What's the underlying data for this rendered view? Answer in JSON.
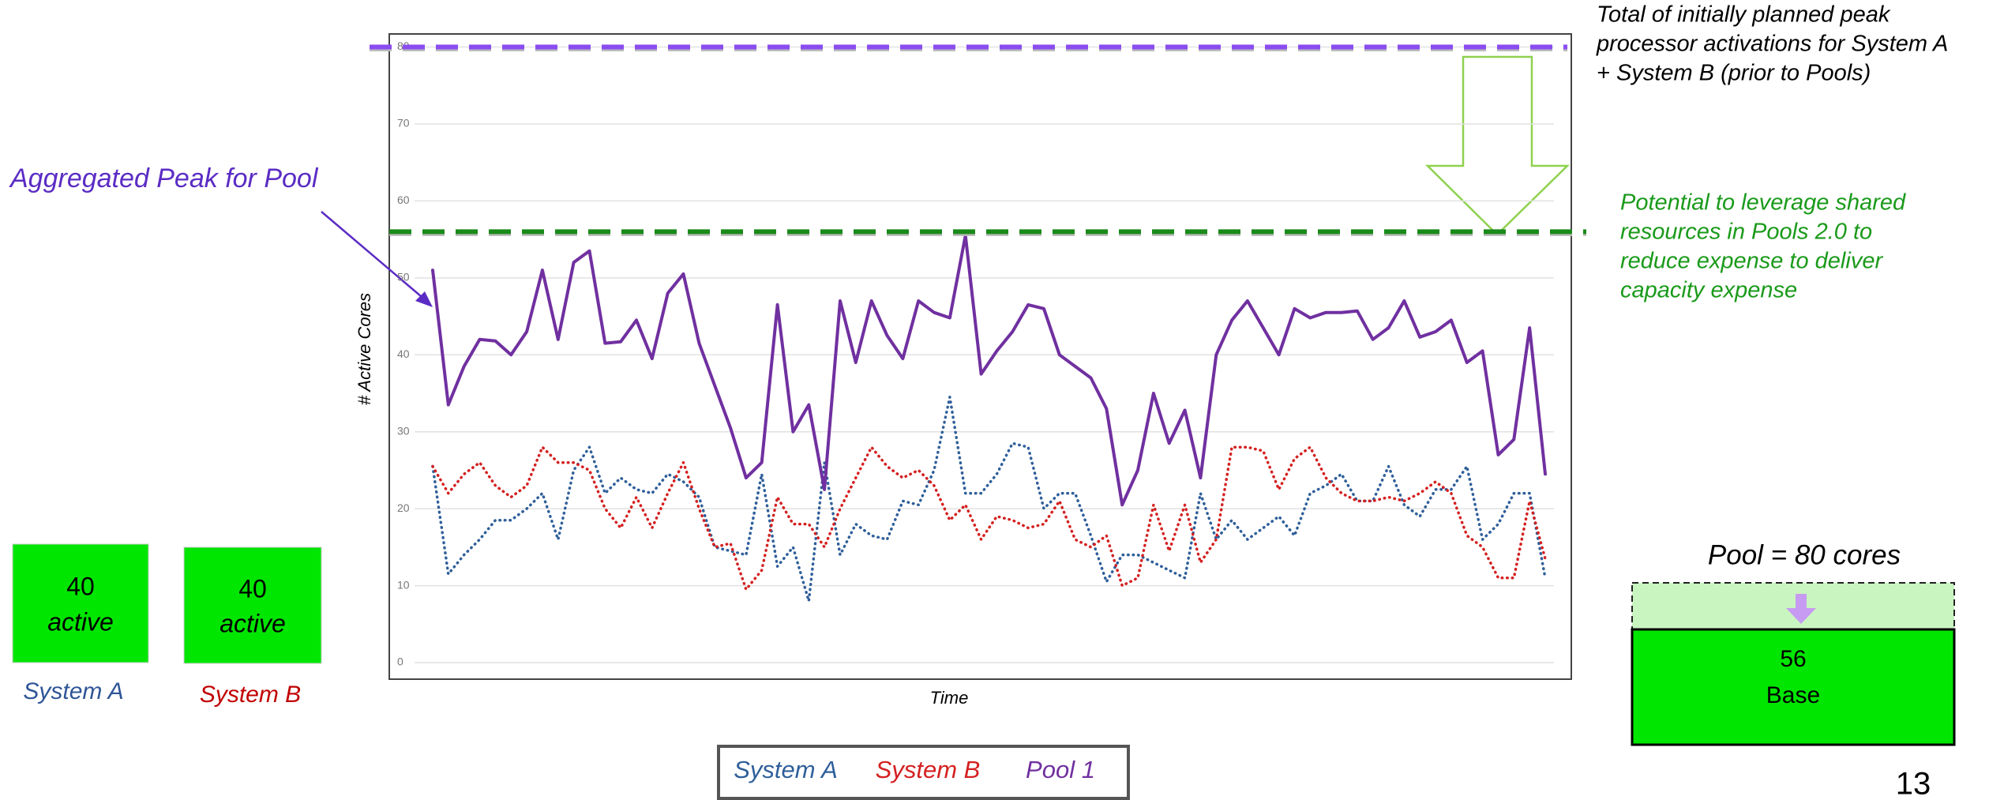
{
  "chart_data": {
    "type": "line",
    "y_label": "# Active Cores",
    "x_label": "Time",
    "ylim": [
      0,
      80
    ],
    "yticks": [
      0,
      10,
      20,
      30,
      40,
      50,
      60,
      70,
      80
    ],
    "grid": true,
    "series": [
      {
        "name": "System A",
        "color": "#2f5f9a",
        "style": "dotted",
        "values": [
          25.5,
          11.5,
          14,
          16,
          18.5,
          18.5,
          20,
          22,
          16,
          25,
          28,
          22,
          24,
          22.5,
          22,
          24.5,
          23.5,
          21.5,
          15,
          14.5,
          14,
          24.5,
          12.5,
          15,
          8,
          26,
          14,
          18,
          16.5,
          16,
          21,
          20.5,
          25,
          34.5,
          22,
          22,
          24.5,
          28.5,
          28,
          20,
          22,
          22,
          16.5,
          10.5,
          14,
          14,
          13,
          12,
          11,
          22,
          16,
          18.5,
          16,
          17.5,
          19,
          16.5,
          22,
          23,
          24.5,
          21,
          21,
          25.5,
          20.5,
          19,
          22.5,
          22.5,
          25.5,
          16,
          18,
          22,
          22,
          11
        ]
      },
      {
        "name": "System B",
        "color": "#d42020",
        "style": "dotted",
        "values": [
          25.5,
          22,
          24.5,
          26,
          23,
          21.5,
          23,
          28,
          26,
          26,
          25,
          20,
          17.5,
          21.5,
          17.5,
          22,
          26,
          20,
          15,
          15.5,
          9.5,
          12,
          21.5,
          18,
          18,
          15,
          20,
          24,
          28,
          25.5,
          24,
          25,
          23,
          18.5,
          20.5,
          16,
          19,
          18.5,
          17.5,
          18,
          21,
          16,
          15,
          16.5,
          10,
          11,
          20.5,
          14.5,
          20.5,
          13,
          16,
          28,
          28,
          27.5,
          22.5,
          26.5,
          28,
          24,
          22,
          21,
          21,
          21.5,
          21,
          22,
          23.5,
          22,
          16.5,
          15,
          11,
          11,
          21,
          13.5
        ]
      },
      {
        "name": "Pool 1",
        "color": "#7030a0",
        "style": "solid",
        "values": [
          51,
          33.5,
          38.5,
          42,
          41.8,
          40,
          43,
          51,
          42,
          52,
          53.5,
          41.5,
          41.7,
          44.5,
          39.5,
          48,
          50.5,
          41.5,
          36,
          30.5,
          24,
          26,
          46.5,
          30,
          33.5,
          22.5,
          47,
          39,
          47,
          42.5,
          39.5,
          47,
          45.5,
          44.8,
          55.5,
          37.5,
          40.5,
          43,
          46.5,
          46,
          40,
          38.5,
          37,
          33,
          20.5,
          25,
          35,
          28.5,
          32.8,
          24,
          40,
          44.5,
          47,
          43.5,
          40,
          46,
          44.8,
          45.5,
          45.5,
          45.7,
          42,
          43.5,
          47,
          42.3,
          43,
          44.5,
          39,
          40.5,
          27,
          29,
          43.5,
          24.5
        ]
      }
    ],
    "reference_lines": [
      {
        "value": 80,
        "color": "#8a4cf0"
      },
      {
        "value": 56,
        "color": "#1a8a1a"
      }
    ],
    "annotations": {
      "peak": "Aggregated Peak for Pool",
      "planned": [
        "Total of initially planned peak",
        "processor activations for System A",
        "+ System B (prior to Pools)"
      ],
      "potential": [
        "Potential to leverage shared",
        "resources in Pools 2.0 to",
        "reduce  expense to deliver",
        "capacity expense"
      ]
    }
  },
  "boxes": [
    {
      "value": 40,
      "label": "active",
      "name": "System A"
    },
    {
      "value": 40,
      "label": "active",
      "name": "System B"
    }
  ],
  "pool": {
    "title": "Pool = 80 cores",
    "value": 56,
    "label": "Base"
  },
  "page_number": 13
}
